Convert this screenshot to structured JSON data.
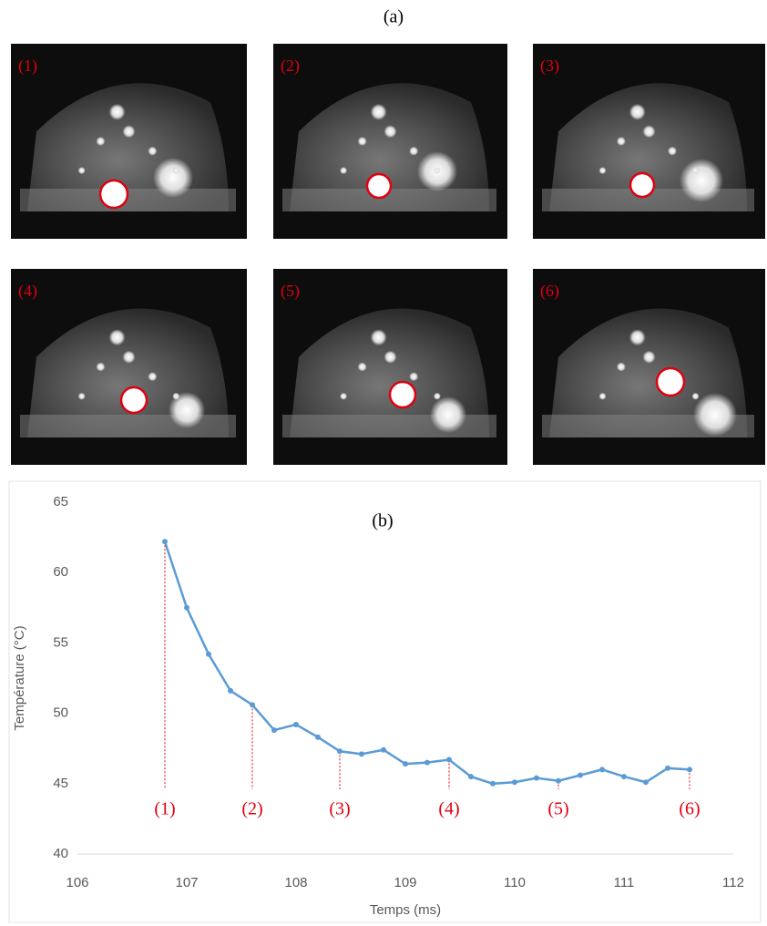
{
  "figure_label": "(a)",
  "panels": [
    {
      "label": "(1)"
    },
    {
      "label": "(2)"
    },
    {
      "label": "(3)"
    },
    {
      "label": "(4)"
    },
    {
      "label": "(5)"
    },
    {
      "label": "(6)"
    }
  ],
  "chart_data": {
    "type": "line",
    "subtitle": "(b)",
    "x_label": "Temps (ms)",
    "y_label": "Température (°C)",
    "x": [
      106.8,
      107.0,
      107.2,
      107.4,
      107.6,
      107.8,
      108.0,
      108.2,
      108.4,
      108.6,
      108.8,
      109.0,
      109.2,
      109.4,
      109.6,
      109.8,
      110.0,
      110.2,
      110.4,
      110.6,
      110.8,
      111.0,
      111.2,
      111.4,
      111.6
    ],
    "series": [
      {
        "name": "Température",
        "color": "#5b9bd5",
        "values": [
          62.2,
          57.5,
          54.2,
          51.6,
          50.6,
          48.8,
          49.2,
          48.3,
          47.3,
          47.1,
          47.4,
          46.4,
          46.5,
          46.7,
          45.5,
          45.0,
          45.1,
          45.4,
          45.2,
          45.6,
          46.0,
          45.5,
          45.1,
          46.1,
          46.0
        ]
      }
    ],
    "markers": [
      {
        "label": "(1)",
        "x": 106.8
      },
      {
        "label": "(2)",
        "x": 107.6
      },
      {
        "label": "(3)",
        "x": 108.4
      },
      {
        "label": "(4)",
        "x": 109.4
      },
      {
        "label": "(5)",
        "x": 110.4
      },
      {
        "label": "(6)",
        "x": 111.6
      }
    ],
    "marker_color": "#e0000f",
    "xlim": [
      106,
      112
    ],
    "xticks": [
      106,
      107,
      108,
      109,
      110,
      111,
      112
    ],
    "ylim": [
      40,
      65
    ],
    "yticks": [
      40,
      45,
      50,
      55,
      60,
      65
    ],
    "grid": false
  }
}
